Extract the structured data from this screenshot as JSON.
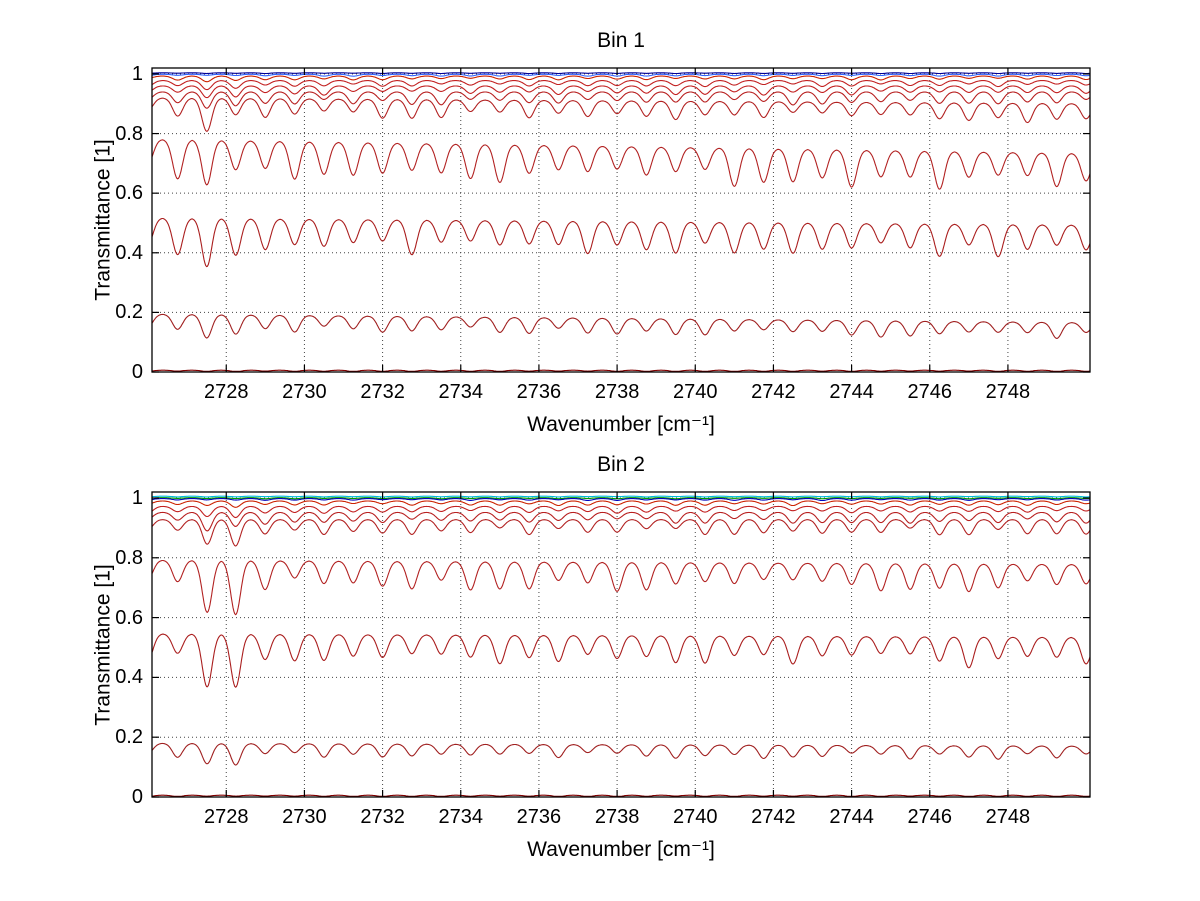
{
  "figure": {
    "background": "#ffffff",
    "axis_color": "#000000",
    "grid_color": "#444444"
  },
  "chart_data": [
    {
      "type": "line",
      "title": "Bin 1",
      "xlabel": "Wavenumber [cm⁻¹]",
      "ylabel": "Transmittance [1]",
      "xlim": [
        2726.1,
        2750.1
      ],
      "ylim": [
        0,
        1.02
      ],
      "xticks": [
        2728,
        2730,
        2732,
        2734,
        2736,
        2738,
        2740,
        2742,
        2744,
        2746,
        2748
      ],
      "xtick_labels": [
        "2728",
        "2730",
        "2732",
        "2734",
        "2736",
        "2738",
        "2740",
        "2742",
        "2744",
        "2746",
        "2748"
      ],
      "yticks": [
        0,
        0.2,
        0.4,
        0.6,
        0.8,
        1
      ],
      "ytick_labels": [
        "0",
        "0.2",
        "0.4",
        "0.6",
        "0.8",
        "1"
      ],
      "grid": true,
      "legend": "none",
      "dip_period": 0.75,
      "dip_width": 0.17,
      "anomaly_x": 2727.6,
      "series": [
        {
          "name": "trace-blue-flat",
          "color": "#000099",
          "baseline": 1.004,
          "depth": 0.002,
          "slope": 0,
          "seed": 1,
          "anomaly": 0
        },
        {
          "name": "trace-blue",
          "color": "#3366FF",
          "baseline": 0.999,
          "depth": 0.005,
          "slope": 0,
          "seed": 2,
          "anomaly": 0
        },
        {
          "name": "trace-red-0.99",
          "color": "#CC2200",
          "baseline": 0.993,
          "depth": 0.01,
          "slope": 0,
          "seed": 3,
          "anomaly": 0.5
        },
        {
          "name": "trace-red-0.98",
          "color": "#C22020",
          "baseline": 0.978,
          "depth": 0.016,
          "slope": 0,
          "seed": 4,
          "anomaly": 0.6
        },
        {
          "name": "trace-red-0.96",
          "color": "#C22020",
          "baseline": 0.96,
          "depth": 0.024,
          "slope": 0,
          "seed": 5,
          "anomaly": 0.7
        },
        {
          "name": "trace-red-0.94",
          "color": "#B82020",
          "baseline": 0.94,
          "depth": 0.034,
          "slope": 0,
          "seed": 6,
          "anomaly": 0.8
        },
        {
          "name": "trace-red-0.91",
          "color": "#B22222",
          "baseline": 0.91,
          "depth": 0.05,
          "slope": -0.0008,
          "seed": 7,
          "anomaly": 0.8
        },
        {
          "name": "trace-red-0.75",
          "color": "#B22222",
          "baseline": 0.757,
          "depth": 0.1,
          "slope": -0.002,
          "seed": 8,
          "anomaly": 0.6
        },
        {
          "name": "trace-red-0.50",
          "color": "#AA1E1E",
          "baseline": 0.505,
          "depth": 0.09,
          "slope": -0.001,
          "seed": 9,
          "anomaly": 0.5
        },
        {
          "name": "trace-red-0.18",
          "color": "#A02020",
          "baseline": 0.18,
          "depth": 0.045,
          "slope": -0.0012,
          "seed": 10,
          "anomaly": 0.4
        },
        {
          "name": "trace-darkred-0",
          "color": "#800000",
          "baseline": 0.006,
          "depth": 0.004,
          "slope": 0,
          "seed": 11,
          "anomaly": 0
        }
      ]
    },
    {
      "type": "line",
      "title": "Bin 2",
      "xlabel": "Wavenumber [cm⁻¹]",
      "ylabel": "Transmittance [1]",
      "xlim": [
        2726.1,
        2750.1
      ],
      "ylim": [
        0,
        1.02
      ],
      "xticks": [
        2728,
        2730,
        2732,
        2734,
        2736,
        2738,
        2740,
        2742,
        2744,
        2746,
        2748
      ],
      "xtick_labels": [
        "2728",
        "2730",
        "2732",
        "2734",
        "2736",
        "2738",
        "2740",
        "2742",
        "2744",
        "2746",
        "2748"
      ],
      "yticks": [
        0,
        0.2,
        0.4,
        0.6,
        0.8,
        1
      ],
      "ytick_labels": [
        "0",
        "0.2",
        "0.4",
        "0.6",
        "0.8",
        "1"
      ],
      "grid": true,
      "legend": "none",
      "dip_period": 0.75,
      "dip_width": 0.17,
      "anomaly_x": 2727.9,
      "series": [
        {
          "name": "trace-cyan-flat",
          "color": "#00BBDD",
          "baseline": 1.006,
          "depth": 0.002,
          "slope": 0,
          "seed": 21,
          "anomaly": 0
        },
        {
          "name": "trace-green-flat",
          "color": "#009900",
          "baseline": 1.001,
          "depth": 0.003,
          "slope": 0,
          "seed": 22,
          "anomaly": 0
        },
        {
          "name": "trace-blue",
          "color": "#0000BB",
          "baseline": 0.998,
          "depth": 0.005,
          "slope": 0,
          "seed": 23,
          "anomaly": 0
        },
        {
          "name": "trace-red-0.99",
          "color": "#CC2200",
          "baseline": 0.99,
          "depth": 0.012,
          "slope": 0,
          "seed": 24,
          "anomaly": 1.0
        },
        {
          "name": "trace-red-0.97",
          "color": "#C22020",
          "baseline": 0.972,
          "depth": 0.018,
          "slope": 0,
          "seed": 25,
          "anomaly": 1.2
        },
        {
          "name": "trace-red-0.95",
          "color": "#B82020",
          "baseline": 0.952,
          "depth": 0.028,
          "slope": 0,
          "seed": 26,
          "anomaly": 1.4
        },
        {
          "name": "trace-red-0.93",
          "color": "#B22222",
          "baseline": 0.928,
          "depth": 0.04,
          "slope": 0,
          "seed": 27,
          "anomaly": 1.5
        },
        {
          "name": "trace-red-0.78",
          "color": "#B22222",
          "baseline": 0.785,
          "depth": 0.075,
          "slope": -0.0006,
          "seed": 28,
          "anomaly": 1.2
        },
        {
          "name": "trace-red-0.54",
          "color": "#AA1E1E",
          "baseline": 0.54,
          "depth": 0.08,
          "slope": -0.0005,
          "seed": 29,
          "anomaly": 1.0
        },
        {
          "name": "trace-red-0.17",
          "color": "#A02020",
          "baseline": 0.175,
          "depth": 0.035,
          "slope": -0.0004,
          "seed": 30,
          "anomaly": 0.8
        },
        {
          "name": "trace-darkred-0",
          "color": "#800000",
          "baseline": 0.006,
          "depth": 0.004,
          "slope": 0,
          "seed": 31,
          "anomaly": 0
        }
      ]
    }
  ]
}
